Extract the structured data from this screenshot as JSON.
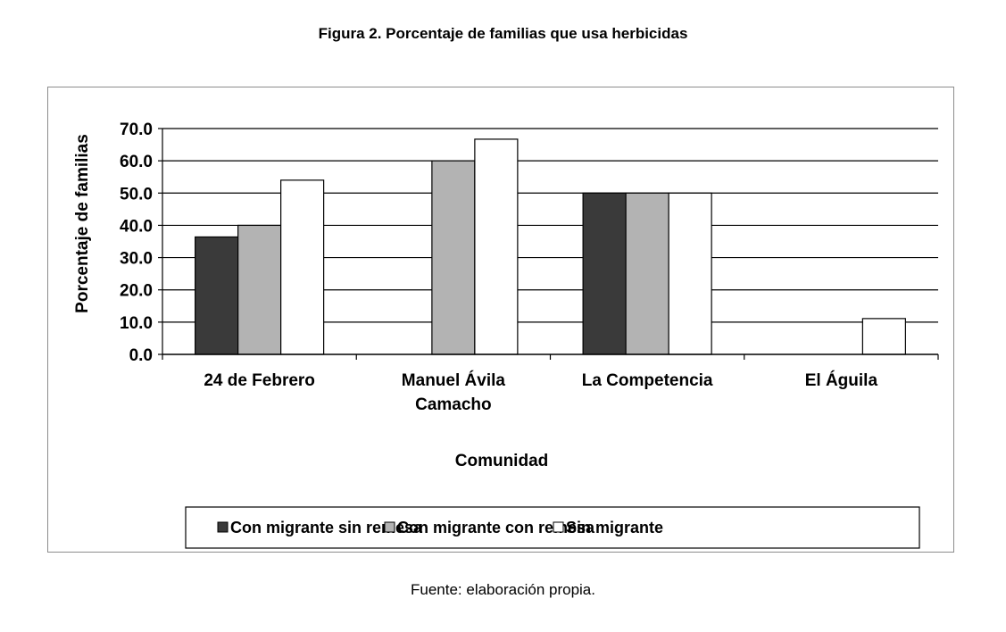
{
  "figure_title": "Figura 2. Porcentaje de familias que usa herbicidas",
  "source_note": "Fuente: elaboración propia.",
  "chart_data": {
    "type": "bar",
    "title": "",
    "xlabel": "Comunidad",
    "ylabel": "Porcentaje de familias",
    "categories": [
      "24 de Febrero",
      "Manuel Ávila Camacho",
      "La Competencia",
      "El Águila"
    ],
    "category_lines": [
      [
        "24 de Febrero"
      ],
      [
        "Manuel Ávila",
        "Camacho"
      ],
      [
        "La Competencia"
      ],
      [
        "El Águila"
      ]
    ],
    "ylim": [
      0,
      70
    ],
    "yticks": [
      "0.0",
      "10.0",
      "20.0",
      "30.0",
      "40.0",
      "50.0",
      "60.0",
      "70.0"
    ],
    "grid": true,
    "legend_position": "bottom",
    "series": [
      {
        "name": "Con migrante sin remesa",
        "values": [
          36.4,
          0,
          50.0,
          0
        ],
        "color": "#3a3a3a"
      },
      {
        "name": "Con migrante con remesa",
        "values": [
          40.0,
          60.0,
          50.0,
          0
        ],
        "color": "#b3b3b3"
      },
      {
        "name": "Sin migrante",
        "values": [
          54.0,
          66.7,
          50.0,
          11.1
        ],
        "color": "#ffffff"
      }
    ]
  }
}
